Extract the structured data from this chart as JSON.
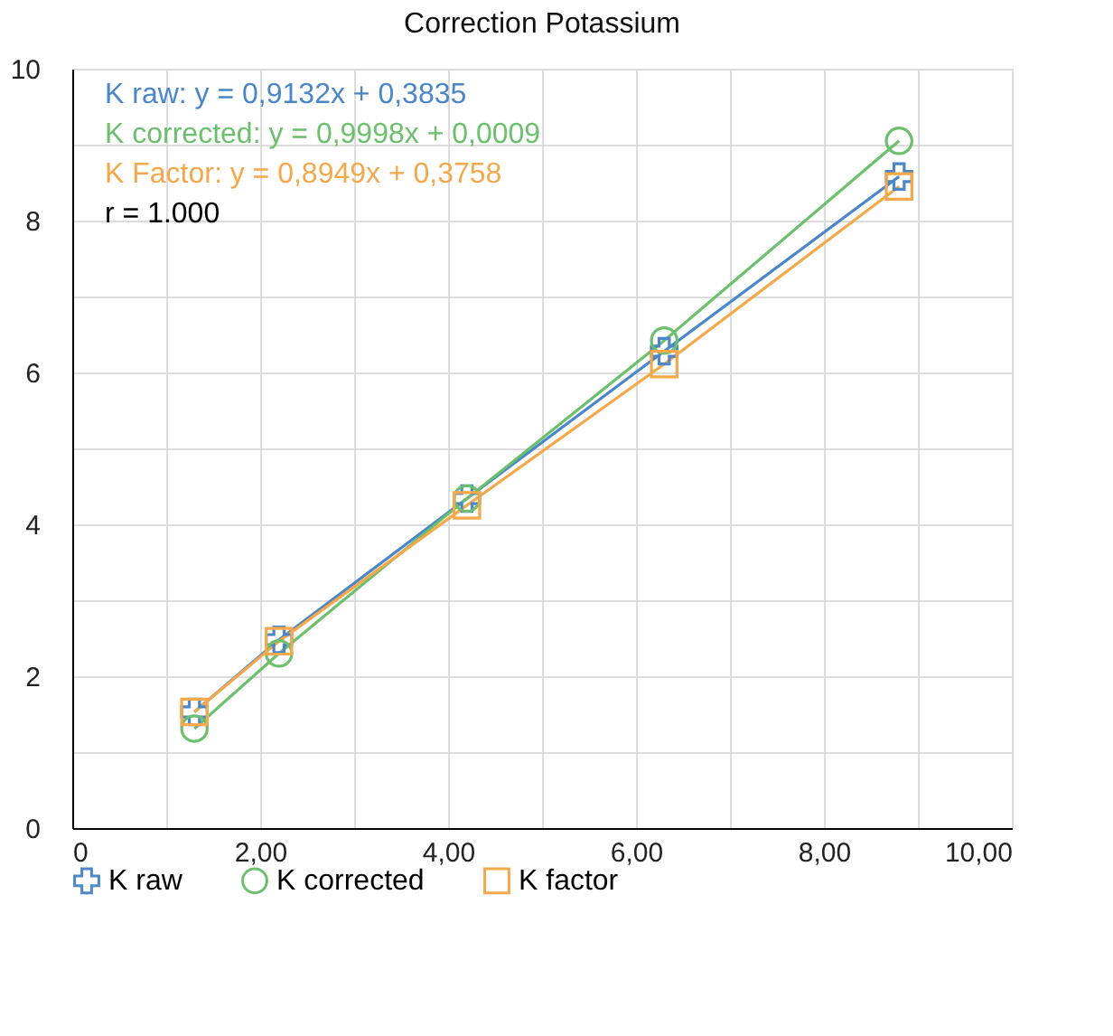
{
  "chart_data": {
    "type": "line",
    "title": "Correction Potassium",
    "x": [
      1.3,
      2.2,
      4.2,
      6.3,
      8.8
    ],
    "series": [
      {
        "name": "K raw",
        "color": "#4a86c8",
        "marker": "cross",
        "values": [
          1.53,
          2.48,
          4.34,
          6.28,
          8.58
        ]
      },
      {
        "name": "K corrected",
        "color": "#6cbf6c",
        "marker": "circle",
        "values": [
          1.31,
          2.3,
          4.34,
          6.42,
          9.05
        ]
      },
      {
        "name": "K factor",
        "color": "#f5a84a",
        "marker": "square",
        "values": [
          1.53,
          2.46,
          4.25,
          6.11,
          8.45
        ]
      }
    ],
    "annotations": [
      "K raw: y = 0,9132x + 0,3835",
      "K corrected: y = 0,9998x + 0,0009",
      "K Factor: y = 0,8949x + 0,3758",
      "r = 1.000"
    ],
    "xlim": [
      0,
      10
    ],
    "ylim": [
      0,
      10
    ],
    "xticks": [
      0,
      {
        "value": 1,
        "label": null
      },
      {
        "value": 2,
        "label": "2,00"
      },
      {
        "value": 3,
        "label": null
      },
      {
        "value": 4,
        "label": "4,00"
      },
      {
        "value": 5,
        "label": null
      },
      {
        "value": 6,
        "label": "6,00"
      },
      {
        "value": 7,
        "label": null
      },
      {
        "value": 8,
        "label": "8,00"
      },
      {
        "value": 9,
        "label": null
      },
      {
        "value": 10,
        "label": "10,00"
      }
    ],
    "yticks": [
      0,
      {
        "value": 1,
        "label": null
      },
      2,
      {
        "value": 3,
        "label": null
      },
      4,
      {
        "value": 5,
        "label": null
      },
      6,
      {
        "value": 7,
        "label": null
      },
      8,
      {
        "value": 9,
        "label": null
      },
      10
    ],
    "grid": true,
    "legend": "bottom",
    "line_style": "solid"
  }
}
